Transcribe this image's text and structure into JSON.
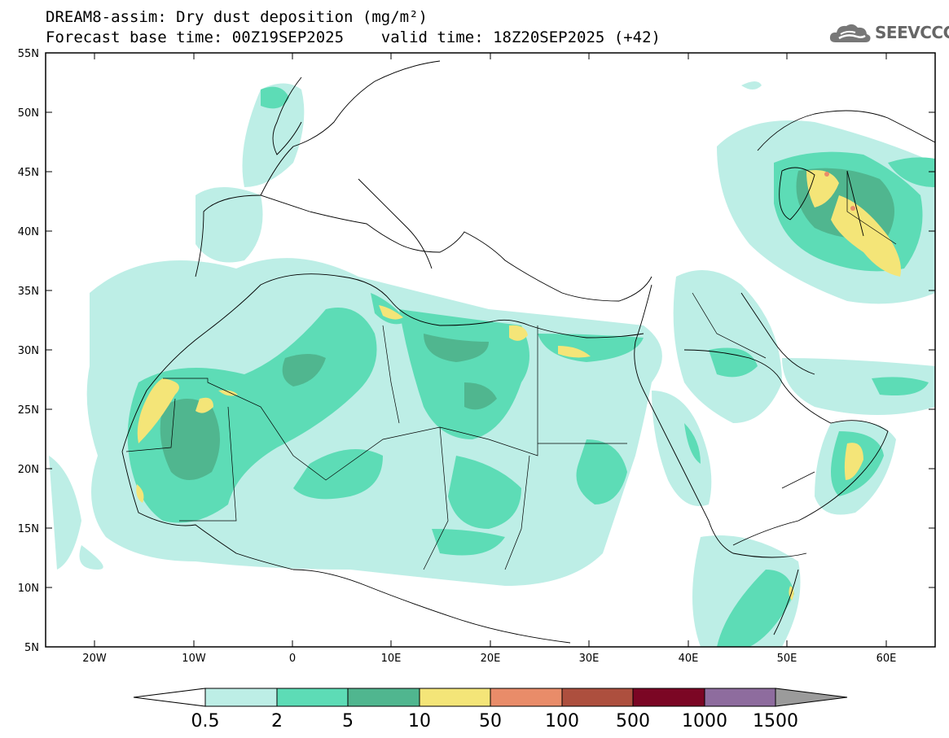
{
  "header": {
    "line1": "DREAM8-assim: Dry dust deposition (mg/m²)",
    "line2": "Forecast base time: 00Z19SEP2025    valid time: 18Z20SEP2025 (+42)",
    "logo_text": "SEEVCCC"
  },
  "map": {
    "lat_labels": [
      "55N",
      "50N",
      "45N",
      "40N",
      "35N",
      "30N",
      "25N",
      "20N",
      "15N",
      "10N",
      "5N"
    ],
    "lon_labels": [
      "20W",
      "10W",
      "0",
      "10E",
      "20E",
      "30E",
      "40E",
      "50E",
      "60E"
    ]
  },
  "legend": {
    "labels": [
      "0.5",
      "2",
      "5",
      "10",
      "50",
      "100",
      "500",
      "1000",
      "1500"
    ],
    "colors": [
      "#bdeee6",
      "#5ddcb6",
      "#50b68f",
      "#f4e578",
      "#e98c69",
      "#ad4f3e",
      "#7b0624",
      "#8e6c9e",
      "#9b9b9b"
    ]
  }
}
